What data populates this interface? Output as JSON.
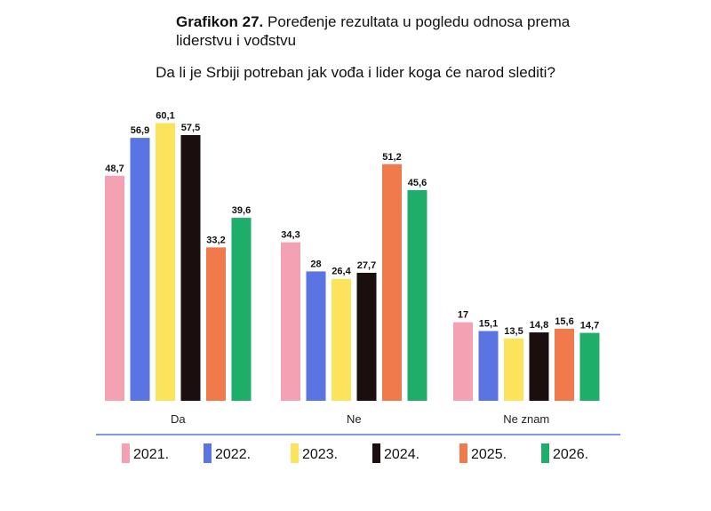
{
  "chart_data": {
    "type": "bar",
    "title_bold": "Grafikon 27.",
    "title_rest": " Poređenje rezultata u pogledu odnosa prema liderstvu i vođstvu",
    "subtitle": "Da li je Srbiji potreban jak vođa i lider koga će narod slediti?",
    "categories": [
      "Da",
      "Ne",
      "Ne znam"
    ],
    "series": [
      {
        "name": "2021.",
        "color": "#f4a1b4",
        "values": [
          48.7,
          34.3,
          17
        ],
        "labels": [
          "48,7",
          "34,3",
          "17"
        ]
      },
      {
        "name": "2022.",
        "color": "#5b74e4",
        "values": [
          56.9,
          28,
          15.1
        ],
        "labels": [
          "56,9",
          "28",
          "15,1"
        ]
      },
      {
        "name": "2023.",
        "color": "#fbe45b",
        "values": [
          60.1,
          26.4,
          13.5
        ],
        "labels": [
          "60,1",
          "26,4",
          "13,5"
        ]
      },
      {
        "name": "2024.",
        "color": "#1a0e0e",
        "values": [
          57.5,
          27.7,
          14.8
        ],
        "labels": [
          "57,5",
          "27,7",
          "14,8"
        ]
      },
      {
        "name": "2025.",
        "color": "#f17a4c",
        "values": [
          33.2,
          51.2,
          15.6
        ],
        "labels": [
          "33,2",
          "51,2",
          "15,6"
        ]
      },
      {
        "name": "2026.",
        "color": "#1fae6a",
        "values": [
          39.6,
          45.6,
          14.7
        ],
        "labels": [
          "39,6",
          "45,6",
          "14,7"
        ]
      }
    ],
    "ylim": [
      0,
      62
    ],
    "legend_position": "bottom",
    "divider_color": "#5b74e4"
  }
}
